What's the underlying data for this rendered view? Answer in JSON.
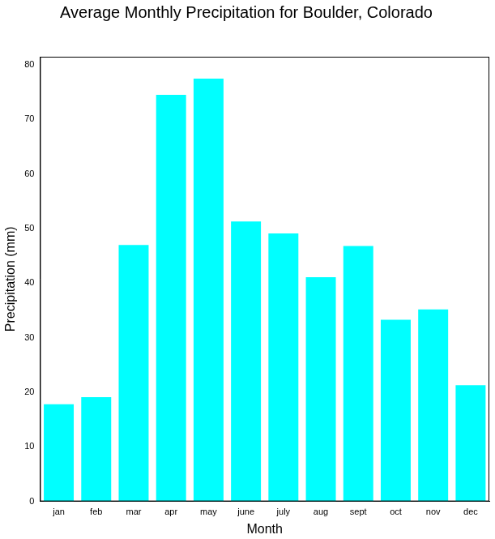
{
  "chart_data": {
    "type": "bar",
    "title": "Average Monthly Precipitation for Boulder, Colorado",
    "xlabel": "Month",
    "ylabel": "Precipitation (mm)",
    "categories": [
      "jan",
      "feb",
      "mar",
      "apr",
      "may",
      "june",
      "july",
      "aug",
      "sept",
      "oct",
      "nov",
      "dec"
    ],
    "values": [
      17.8,
      19.1,
      47.0,
      74.5,
      77.5,
      51.3,
      49.1,
      41.1,
      46.8,
      33.3,
      35.2,
      21.3
    ],
    "color": "#00ffff",
    "ylim": [
      0,
      81.5
    ],
    "yticks": [
      0,
      10,
      20,
      30,
      40,
      50,
      60,
      70,
      80
    ],
    "grid": false
  }
}
